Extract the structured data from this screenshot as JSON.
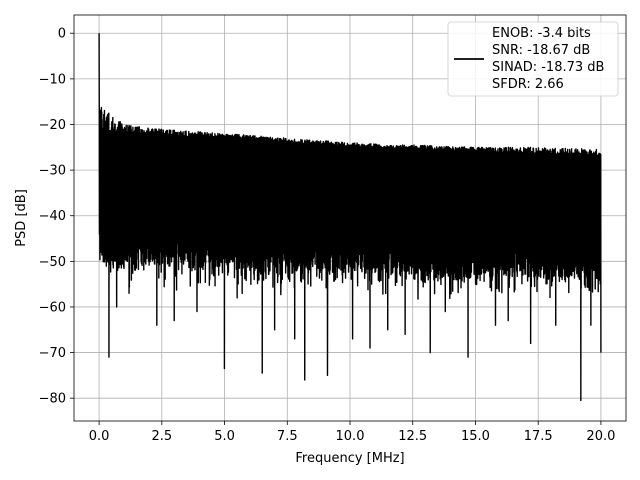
{
  "chart_data": {
    "type": "line",
    "title": "",
    "xlabel": "Frequency [MHz]",
    "ylabel": "PSD [dB]",
    "xlim": [
      -1.0,
      21.0
    ],
    "ylim": [
      -85,
      4
    ],
    "xticks": [
      0.0,
      2.5,
      5.0,
      7.5,
      10.0,
      12.5,
      15.0,
      17.5,
      20.0
    ],
    "xtick_labels": [
      "0.0",
      "2.5",
      "5.0",
      "7.5",
      "10.0",
      "12.5",
      "15.0",
      "17.5",
      "20.0"
    ],
    "yticks": [
      0,
      -10,
      -20,
      -30,
      -40,
      -50,
      -60,
      -70,
      -80
    ],
    "ytick_labels": [
      "0",
      "−10",
      "−20",
      "−30",
      "−40",
      "−50",
      "−60",
      "−70",
      "−80"
    ],
    "grid": true,
    "legend": {
      "placement": "top-right",
      "lines": [
        "ENOB: -3.4 bits",
        "SNR: -18.67 dB",
        "SINAD: -18.73 dB",
        "SFDR: 2.66"
      ]
    },
    "series": [
      {
        "color": "#000000",
        "x_range": [
          0.0,
          20.0
        ],
        "peak": {
          "x": 0.0,
          "y": 0.0
        },
        "upper_envelope": [
          [
            0.1,
            -16
          ],
          [
            1.0,
            -20
          ],
          [
            2.5,
            -21
          ],
          [
            5.0,
            -22
          ],
          [
            7.5,
            -23
          ],
          [
            10.0,
            -24
          ],
          [
            12.5,
            -24.5
          ],
          [
            15.0,
            -25
          ],
          [
            17.5,
            -25
          ],
          [
            20.0,
            -25.5
          ]
        ],
        "band_top": [
          [
            0.1,
            -22
          ],
          [
            5.0,
            -23
          ],
          [
            10.0,
            -25
          ],
          [
            15.0,
            -26
          ],
          [
            20.0,
            -27
          ]
        ],
        "band_bottom": [
          [
            0.1,
            -50
          ],
          [
            5.0,
            -51
          ],
          [
            10.0,
            -52
          ],
          [
            15.0,
            -53
          ],
          [
            20.0,
            -54
          ]
        ],
        "deep_minima": [
          [
            0.4,
            -71
          ],
          [
            0.7,
            -60
          ],
          [
            1.2,
            -57
          ],
          [
            2.3,
            -64
          ],
          [
            3.0,
            -63
          ],
          [
            3.9,
            -61
          ],
          [
            5.0,
            -73.5
          ],
          [
            5.5,
            -58
          ],
          [
            6.5,
            -74.5
          ],
          [
            7.0,
            -65
          ],
          [
            7.8,
            -67
          ],
          [
            8.2,
            -76
          ],
          [
            9.1,
            -75
          ],
          [
            10.1,
            -67
          ],
          [
            10.8,
            -69
          ],
          [
            11.5,
            -65
          ],
          [
            12.2,
            -66
          ],
          [
            13.2,
            -70
          ],
          [
            13.8,
            -61
          ],
          [
            14.7,
            -71
          ],
          [
            15.8,
            -64
          ],
          [
            16.3,
            -63
          ],
          [
            17.2,
            -68
          ],
          [
            18.2,
            -64
          ],
          [
            19.2,
            -80.5
          ],
          [
            19.6,
            -64
          ],
          [
            20.0,
            -70
          ]
        ]
      }
    ]
  }
}
